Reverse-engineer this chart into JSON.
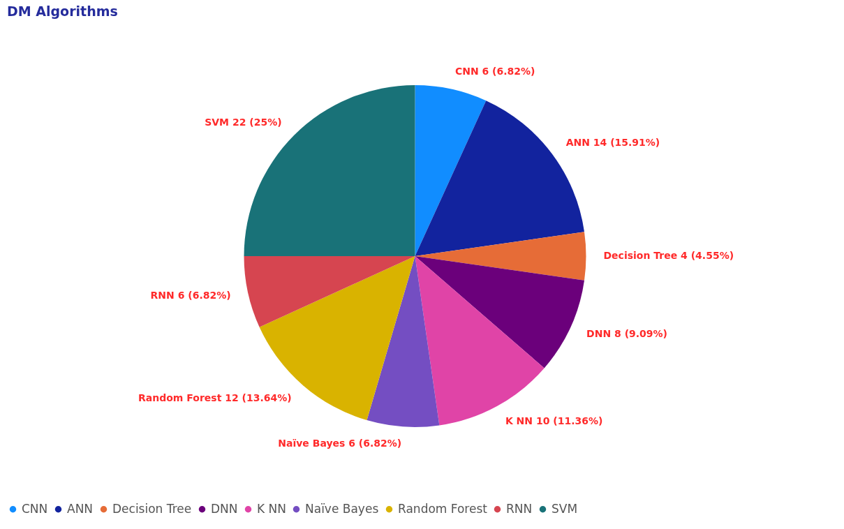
{
  "chart_data": {
    "type": "pie",
    "title": "DM Algorithms",
    "categories": [
      "CNN",
      "ANN",
      "Decision Tree",
      "DNN",
      "K NN",
      "Naïve Bayes",
      "Random Forest",
      "RNN",
      "SVM"
    ],
    "values": [
      6,
      14,
      4,
      8,
      10,
      6,
      12,
      6,
      22
    ],
    "colors": [
      "#118dff",
      "#12239e",
      "#e66c37",
      "#6b007b",
      "#e044a7",
      "#744ec2",
      "#d9b300",
      "#d64550",
      "#197278"
    ],
    "value_labels": [
      "CNN 6 (6.82%)",
      "ANN 14 (15.91%)",
      "Decision Tree 4 (4.55%)",
      "DNN 8 (9.09%)",
      "K NN 10 (11.36%)",
      "Naïve Bayes 6 (6.82%)",
      "Random Forest 12 (13.64%)",
      "RNN 6 (6.82%)",
      "SVM 22 (25%)"
    ],
    "legend": "bottom"
  }
}
